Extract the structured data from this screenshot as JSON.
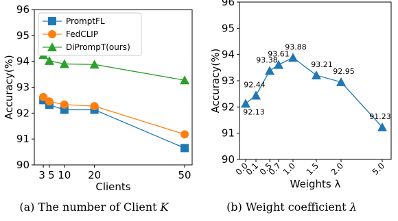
{
  "chart_data": [
    {
      "type": "line",
      "caption": "(a) The number of Client",
      "caption_var": "K",
      "xlabel": "Clients",
      "ylabel": "Accuracy(%)",
      "x": [
        3,
        5,
        10,
        20,
        50
      ],
      "xticks": [
        "3",
        "5",
        "10",
        "20",
        "50"
      ],
      "ylim": [
        90,
        96
      ],
      "yticks": [
        "90",
        "91",
        "92",
        "93",
        "94",
        "95",
        "96"
      ],
      "legend_position": "upper-left",
      "series": [
        {
          "name": "PromptFL",
          "color": "#1f77b4",
          "marker": "square",
          "values": [
            92.5,
            92.32,
            92.13,
            92.13,
            90.65
          ]
        },
        {
          "name": "FedCLIP",
          "color": "#ff7f0e",
          "marker": "circle",
          "values": [
            92.62,
            92.45,
            92.33,
            92.27,
            91.18
          ]
        },
        {
          "name": "DiPrompT(ours)",
          "color": "#2ca02c",
          "marker": "triangle",
          "values": [
            94.25,
            94.02,
            93.9,
            93.88,
            93.27
          ]
        }
      ]
    },
    {
      "type": "line",
      "caption": "(b) Weight coefficient",
      "caption_var": "λ",
      "xlabel": "Weights λ",
      "ylabel": "Accuracy(%)",
      "x": [
        0.0,
        0.1,
        0.5,
        0.7,
        1.0,
        1.5,
        2.0,
        5.0
      ],
      "xticks": [
        "0.0",
        "0.1",
        "0.5",
        "0.7",
        "1.0",
        "1.5",
        "2.0",
        "5.0"
      ],
      "ylim": [
        90,
        96
      ],
      "yticks": [
        "90",
        "91",
        "92",
        "93",
        "94",
        "95",
        "96"
      ],
      "series": [
        {
          "color": "#1f77b4",
          "marker": "triangle",
          "values": [
            92.13,
            92.44,
            93.38,
            93.61,
            93.88,
            93.21,
            92.95,
            91.23
          ]
        }
      ],
      "data_labels": [
        "92.13",
        "92.44",
        "93.38",
        "93.61",
        "93.88",
        "93.21",
        "92.95",
        "91.23"
      ]
    }
  ]
}
